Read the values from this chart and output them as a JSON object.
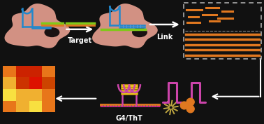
{
  "bg_color": "#111111",
  "arrow_color": "#ffffff",
  "orange_color": "#e07820",
  "green_color": "#80c818",
  "blue_color": "#2288cc",
  "magenta_color": "#cc44aa",
  "pink_blob_color": "#e8a090",
  "pink_blob_alpha": 0.9,
  "label_target": "Target",
  "label_link": "Link",
  "label_g4": "G4/ThT",
  "heatmap_colors": [
    [
      "#e8761a",
      "#cc2200",
      "#cc2200",
      "#e8761a"
    ],
    [
      "#f0b030",
      "#cc3300",
      "#dd1100",
      "#cc4400"
    ],
    [
      "#f8e040",
      "#f0b030",
      "#f0b030",
      "#e8761a"
    ],
    [
      "#e8761a",
      "#f0b030",
      "#f8e040",
      "#e8761a"
    ]
  ],
  "figsize": [
    3.78,
    1.77
  ],
  "dpi": 100
}
